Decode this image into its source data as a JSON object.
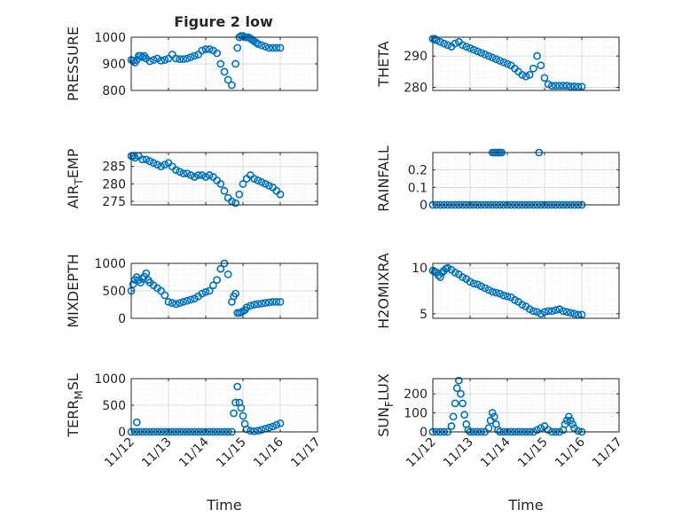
{
  "figure": {
    "title": "Figure 2 low",
    "xlabel": "Time",
    "x_ticks": [
      "11/12",
      "11/13",
      "11/14",
      "11/15",
      "11/16",
      "11/17"
    ]
  },
  "colors": {
    "marker": "#0072BD",
    "axis": "#262626",
    "grid": "#dcdcdc",
    "minor_grid": "#ececec"
  },
  "chart_data": [
    {
      "type": "scatter",
      "ylabel": "PRESSURE",
      "ylabel_sub": "",
      "ylabel_rest": "",
      "xlim": [
        0,
        5
      ],
      "ylim": [
        800,
        1000
      ],
      "yticks": [
        800,
        900,
        1000
      ],
      "yticklabels": [
        "800",
        "900",
        "1000"
      ],
      "x": [
        0,
        0.05,
        0.1,
        0.15,
        0.2,
        0.25,
        0.3,
        0.35,
        0.4,
        0.5,
        0.6,
        0.7,
        0.8,
        0.9,
        1.0,
        1.1,
        1.2,
        1.3,
        1.4,
        1.5,
        1.6,
        1.7,
        1.8,
        1.9,
        2.0,
        2.1,
        2.2,
        2.3,
        2.4,
        2.5,
        2.6,
        2.7,
        2.8,
        2.85,
        2.9,
        2.95,
        3.0,
        3.05,
        3.1,
        3.15,
        3.2,
        3.25,
        3.3,
        3.35,
        3.4,
        3.5,
        3.6,
        3.7,
        3.8,
        3.9,
        4.0
      ],
      "y": [
        915,
        912,
        905,
        915,
        930,
        930,
        925,
        930,
        920,
        910,
        915,
        920,
        912,
        915,
        920,
        935,
        920,
        918,
        918,
        920,
        925,
        930,
        935,
        950,
        955,
        955,
        950,
        940,
        900,
        870,
        840,
        820,
        900,
        960,
        1000,
        1005,
        1005,
        1000,
        1000,
        1000,
        995,
        990,
        985,
        980,
        975,
        970,
        965,
        960,
        960,
        960,
        960
      ],
      "grid": true,
      "legend": "none"
    },
    {
      "type": "scatter",
      "ylabel": "THETA",
      "ylabel_sub": "",
      "ylabel_rest": "",
      "xlim": [
        0,
        5
      ],
      "ylim": [
        279,
        296
      ],
      "yticks": [
        280,
        290
      ],
      "yticklabels": [
        "280",
        "290"
      ],
      "x": [
        0,
        0.05,
        0.1,
        0.2,
        0.3,
        0.4,
        0.5,
        0.6,
        0.7,
        0.8,
        0.9,
        1.0,
        1.1,
        1.2,
        1.3,
        1.4,
        1.5,
        1.6,
        1.7,
        1.8,
        1.9,
        2.0,
        2.1,
        2.2,
        2.3,
        2.4,
        2.5,
        2.6,
        2.7,
        2.8,
        2.9,
        3.0,
        3.1,
        3.2,
        3.3,
        3.4,
        3.5,
        3.6,
        3.7,
        3.8,
        3.9,
        4.0
      ],
      "y": [
        295.5,
        295.5,
        295,
        294.5,
        294,
        293.5,
        293,
        294,
        294.5,
        293.5,
        293,
        292.5,
        292,
        291.5,
        291,
        290.5,
        290,
        289.5,
        289,
        288.5,
        288,
        287.5,
        287,
        286,
        285,
        284,
        283.5,
        284,
        286,
        290,
        287,
        283,
        281,
        280.5,
        280.5,
        280.5,
        280.5,
        280.5,
        280.3,
        280.3,
        280.2,
        280.2
      ],
      "grid": true,
      "legend": "none"
    },
    {
      "type": "scatter",
      "ylabel": "AIR",
      "ylabel_sub": "T",
      "ylabel_rest": "EMP",
      "xlim": [
        0,
        5
      ],
      "ylim": [
        274,
        289
      ],
      "yticks": [
        275,
        280,
        285
      ],
      "yticklabels": [
        "275",
        "280",
        "285"
      ],
      "x": [
        0,
        0.05,
        0.1,
        0.2,
        0.3,
        0.4,
        0.5,
        0.6,
        0.7,
        0.8,
        0.9,
        1.0,
        1.1,
        1.2,
        1.3,
        1.4,
        1.5,
        1.6,
        1.7,
        1.8,
        1.9,
        2.0,
        2.1,
        2.2,
        2.3,
        2.4,
        2.5,
        2.6,
        2.7,
        2.8,
        2.9,
        3.0,
        3.1,
        3.2,
        3.3,
        3.4,
        3.5,
        3.6,
        3.7,
        3.8,
        3.9,
        4.0
      ],
      "y": [
        288,
        288,
        287.5,
        288,
        287,
        287,
        286.5,
        286,
        285.5,
        285,
        285.5,
        286,
        285,
        284,
        283.5,
        283,
        283,
        282.5,
        282,
        282.5,
        282.5,
        282,
        282.5,
        282,
        281,
        280,
        278,
        276,
        275,
        274.5,
        277,
        280,
        281.5,
        282.5,
        281.5,
        281,
        280.5,
        280,
        279.5,
        279,
        278,
        277
      ],
      "grid": true,
      "legend": "none"
    },
    {
      "type": "scatter",
      "ylabel": "RAINFALL",
      "ylabel_sub": "",
      "ylabel_rest": "",
      "xlim": [
        0,
        5
      ],
      "ylim": [
        0,
        0.3
      ],
      "yticks": [
        0,
        0.1,
        0.2
      ],
      "yticklabels": [
        "0",
        "0.1",
        "0.2"
      ],
      "x": [
        0,
        0.1,
        0.2,
        0.3,
        0.4,
        0.5,
        0.6,
        0.7,
        0.8,
        0.9,
        1.0,
        1.1,
        1.2,
        1.3,
        1.4,
        1.5,
        1.6,
        1.7,
        1.8,
        1.9,
        2.0,
        2.1,
        2.2,
        2.3,
        2.4,
        2.5,
        2.6,
        2.7,
        2.8,
        2.9,
        3.0,
        3.1,
        3.2,
        3.3,
        3.4,
        3.5,
        3.6,
        3.7,
        3.8,
        3.9,
        4.0,
        1.6,
        1.65,
        1.7,
        1.75,
        1.8,
        1.85,
        2.85
      ],
      "y": [
        0,
        0,
        0,
        0,
        0,
        0,
        0,
        0,
        0,
        0,
        0,
        0,
        0,
        0,
        0,
        0,
        0,
        0,
        0,
        0,
        0,
        0,
        0,
        0,
        0,
        0,
        0,
        0,
        0,
        0,
        0,
        0,
        0,
        0,
        0,
        0,
        0,
        0,
        0,
        0,
        0,
        0.3,
        0.3,
        0.3,
        0.3,
        0.3,
        0.3,
        0.3
      ],
      "grid": true,
      "legend": "none"
    },
    {
      "type": "scatter",
      "ylabel": "MIXDEPTH",
      "ylabel_sub": "",
      "ylabel_rest": "",
      "xlim": [
        0,
        5
      ],
      "ylim": [
        0,
        1000
      ],
      "yticks": [
        0,
        500,
        1000
      ],
      "yticklabels": [
        "0",
        "500",
        "1000"
      ],
      "x": [
        0,
        0.05,
        0.1,
        0.15,
        0.2,
        0.25,
        0.3,
        0.35,
        0.4,
        0.45,
        0.5,
        0.6,
        0.7,
        0.8,
        0.9,
        1.0,
        1.1,
        1.2,
        1.3,
        1.4,
        1.5,
        1.6,
        1.7,
        1.8,
        1.9,
        2.0,
        2.1,
        2.2,
        2.3,
        2.4,
        2.5,
        2.6,
        2.7,
        2.75,
        2.8,
        2.85,
        2.9,
        2.95,
        3.0,
        3.05,
        3.1,
        3.2,
        3.3,
        3.4,
        3.5,
        3.6,
        3.7,
        3.8,
        3.9,
        4.0
      ],
      "y": [
        500,
        620,
        700,
        750,
        700,
        650,
        720,
        760,
        820,
        700,
        650,
        600,
        550,
        500,
        420,
        300,
        280,
        260,
        280,
        300,
        320,
        340,
        360,
        400,
        450,
        480,
        500,
        600,
        700,
        900,
        1000,
        800,
        300,
        400,
        450,
        100,
        100,
        110,
        130,
        150,
        200,
        230,
        250,
        260,
        270,
        280,
        290,
        300,
        300,
        300
      ],
      "grid": true,
      "legend": "none"
    },
    {
      "type": "scatter",
      "ylabel": "H2OMIXRA",
      "ylabel_sub": "",
      "ylabel_rest": "",
      "xlim": [
        0,
        5
      ],
      "ylim": [
        4.5,
        10.5
      ],
      "yticks": [
        5,
        10
      ],
      "yticklabels": [
        "5",
        "10"
      ],
      "x": [
        0,
        0.05,
        0.1,
        0.15,
        0.2,
        0.25,
        0.3,
        0.35,
        0.4,
        0.5,
        0.6,
        0.7,
        0.8,
        0.9,
        1.0,
        1.1,
        1.2,
        1.3,
        1.4,
        1.5,
        1.6,
        1.7,
        1.8,
        1.9,
        2.0,
        2.1,
        2.2,
        2.3,
        2.4,
        2.5,
        2.6,
        2.7,
        2.8,
        2.9,
        3.0,
        3.1,
        3.2,
        3.3,
        3.4,
        3.5,
        3.6,
        3.7,
        3.8,
        3.9,
        4.0
      ],
      "y": [
        9.7,
        9.6,
        9.5,
        9.2,
        9.0,
        9.5,
        9.7,
        9.9,
        10.0,
        9.8,
        9.5,
        9.3,
        9.0,
        8.8,
        8.5,
        8.3,
        8.2,
        8.0,
        7.8,
        7.6,
        7.4,
        7.3,
        7.2,
        7.0,
        6.9,
        6.8,
        6.5,
        6.3,
        6.0,
        5.8,
        5.5,
        5.3,
        5.2,
        5.0,
        5.2,
        5.3,
        5.3,
        5.4,
        5.5,
        5.3,
        5.2,
        5.1,
        5.0,
        4.9,
        4.9
      ],
      "grid": true,
      "legend": "none"
    },
    {
      "type": "scatter",
      "ylabel": "TERR",
      "ylabel_sub": "M",
      "ylabel_rest": "SL",
      "xlim": [
        0,
        5
      ],
      "ylim": [
        0,
        1000
      ],
      "yticks": [
        0,
        500,
        1000
      ],
      "yticklabels": [
        "0",
        "500",
        "1000"
      ],
      "x": [
        0,
        0.1,
        0.15,
        0.2,
        0.3,
        0.4,
        0.5,
        0.6,
        0.7,
        0.8,
        0.9,
        1.0,
        1.1,
        1.2,
        1.3,
        1.4,
        1.5,
        1.6,
        1.7,
        1.8,
        1.9,
        2.0,
        2.1,
        2.2,
        2.3,
        2.4,
        2.5,
        2.6,
        2.7,
        2.75,
        2.8,
        2.85,
        2.9,
        2.95,
        3.0,
        3.05,
        3.1,
        3.2,
        3.3,
        3.4,
        3.5,
        3.6,
        3.7,
        3.8,
        3.9,
        4.0
      ],
      "y": [
        0,
        0,
        180,
        0,
        0,
        0,
        0,
        0,
        0,
        0,
        0,
        0,
        0,
        0,
        0,
        0,
        0,
        0,
        0,
        0,
        0,
        0,
        0,
        0,
        0,
        0,
        0,
        0,
        0,
        350,
        550,
        850,
        550,
        450,
        300,
        150,
        50,
        20,
        10,
        20,
        40,
        60,
        80,
        100,
        130,
        160
      ],
      "grid": true,
      "legend": "none"
    },
    {
      "type": "scatter",
      "ylabel": "SUN",
      "ylabel_sub": "F",
      "ylabel_rest": "LUX",
      "xlim": [
        0,
        5
      ],
      "ylim": [
        0,
        280
      ],
      "yticks": [
        0,
        100,
        200
      ],
      "yticklabels": [
        "0",
        "100",
        "200"
      ],
      "x": [
        0,
        0.1,
        0.2,
        0.3,
        0.4,
        0.5,
        0.55,
        0.6,
        0.65,
        0.7,
        0.75,
        0.8,
        0.85,
        0.9,
        0.95,
        1.0,
        1.1,
        1.2,
        1.3,
        1.4,
        1.5,
        1.55,
        1.6,
        1.65,
        1.7,
        1.75,
        1.8,
        1.9,
        2.0,
        2.1,
        2.2,
        2.3,
        2.4,
        2.5,
        2.6,
        2.7,
        2.8,
        2.9,
        3.0,
        3.1,
        3.2,
        3.3,
        3.4,
        3.5,
        3.55,
        3.6,
        3.65,
        3.7,
        3.75,
        3.8,
        3.9,
        4.0
      ],
      "y": [
        0,
        0,
        0,
        0,
        0,
        30,
        80,
        150,
        230,
        270,
        200,
        150,
        90,
        40,
        10,
        0,
        0,
        0,
        0,
        0,
        20,
        60,
        100,
        80,
        40,
        10,
        0,
        0,
        0,
        0,
        0,
        0,
        0,
        0,
        0,
        0,
        10,
        20,
        30,
        10,
        0,
        0,
        0,
        10,
        40,
        60,
        80,
        60,
        40,
        20,
        5,
        0
      ],
      "grid": true,
      "legend": "none"
    }
  ]
}
